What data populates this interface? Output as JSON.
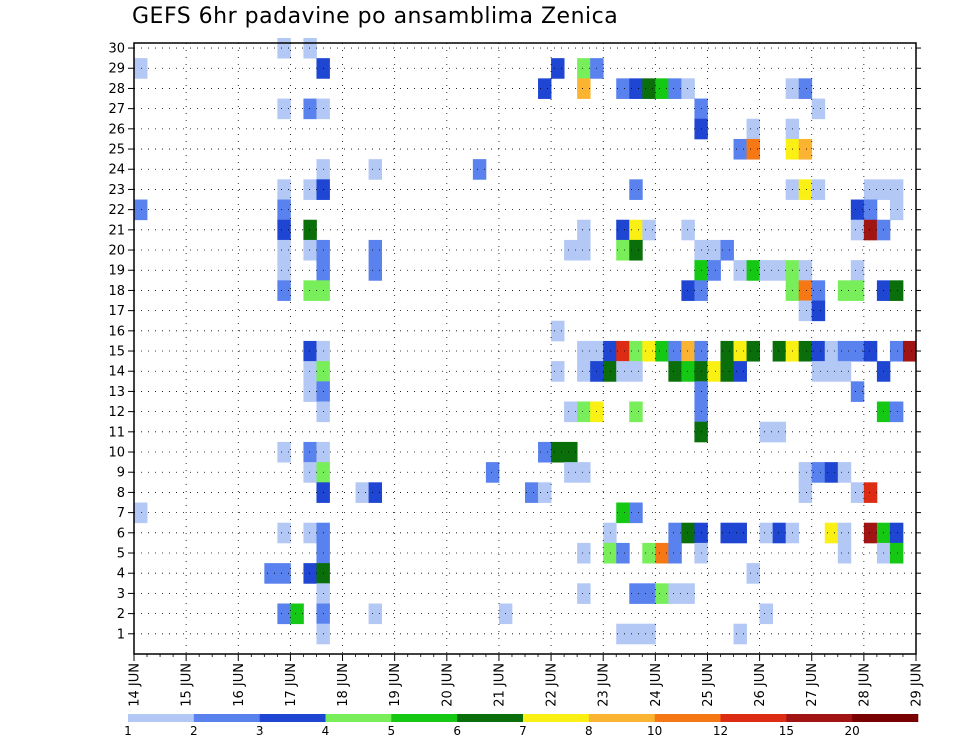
{
  "chart_data": {
    "type": "heatmap",
    "title": "GEFS 6hr padavine po ansamblima Zenica",
    "xlabel": "",
    "ylabel": "",
    "x_tick_labels": [
      "14 JUN",
      "15 JUN",
      "16 JUN",
      "17 JUN",
      "18 JUN",
      "19 JUN",
      "20 JUN",
      "21 JUN",
      "22 JUN",
      "23 JUN",
      "24 JUN",
      "25 JUN",
      "26 JUN",
      "27 JUN",
      "28 JUN",
      "29 JUN"
    ],
    "y_tick_labels": [
      "1",
      "2",
      "3",
      "4",
      "5",
      "6",
      "7",
      "8",
      "9",
      "10",
      "11",
      "12",
      "13",
      "14",
      "15",
      "16",
      "17",
      "18",
      "19",
      "20",
      "21",
      "22",
      "23",
      "24",
      "25",
      "26",
      "27",
      "28",
      "29",
      "30"
    ],
    "x_range_days": [
      14,
      29
    ],
    "y_range": [
      0,
      30
    ],
    "grid": true,
    "colorbar": {
      "labels": [
        "1",
        "2",
        "3",
        "4",
        "5",
        "6",
        "7",
        "8",
        "10",
        "12",
        "15",
        "20"
      ],
      "colors": [
        "#b4c8f5",
        "#5a82ee",
        "#1e46d2",
        "#78ee5a",
        "#14c814",
        "#0a6e0a",
        "#faf014",
        "#fab432",
        "#f57814",
        "#dc2d14",
        "#a01414",
        "#780000"
      ]
    },
    "cells_note": "each cell: [x start day (6-hour steps), ensemble member, colour class index 0-11]",
    "cells": [
      [
        16.75,
        30,
        0
      ],
      [
        17.25,
        30,
        0
      ],
      [
        14.0,
        29,
        0
      ],
      [
        17.5,
        29,
        2
      ],
      [
        22.0,
        29,
        2
      ],
      [
        22.5,
        29,
        3
      ],
      [
        22.75,
        29,
        1
      ],
      [
        21.75,
        28,
        2
      ],
      [
        22.5,
        28,
        7
      ],
      [
        23.25,
        28,
        1
      ],
      [
        23.5,
        28,
        2
      ],
      [
        23.75,
        28,
        5
      ],
      [
        24.0,
        28,
        4
      ],
      [
        24.25,
        28,
        1
      ],
      [
        24.5,
        28,
        0
      ],
      [
        26.5,
        28,
        0
      ],
      [
        26.75,
        28,
        1
      ],
      [
        16.75,
        27,
        0
      ],
      [
        17.25,
        27,
        1
      ],
      [
        17.5,
        27,
        0
      ],
      [
        24.75,
        27,
        1
      ],
      [
        27.0,
        27,
        0
      ],
      [
        24.75,
        26,
        2
      ],
      [
        25.75,
        26,
        0
      ],
      [
        26.5,
        26,
        0
      ],
      [
        25.5,
        25,
        1
      ],
      [
        25.75,
        25,
        8
      ],
      [
        26.5,
        25,
        6
      ],
      [
        26.75,
        25,
        7
      ],
      [
        18.5,
        24,
        0
      ],
      [
        20.5,
        24,
        1
      ],
      [
        17.5,
        24,
        0
      ],
      [
        16.75,
        23,
        0
      ],
      [
        17.25,
        23,
        0
      ],
      [
        17.5,
        23,
        2
      ],
      [
        23.5,
        23,
        1
      ],
      [
        26.5,
        23,
        0
      ],
      [
        26.75,
        23,
        6
      ],
      [
        27.0,
        23,
        0
      ],
      [
        28.0,
        23,
        0
      ],
      [
        28.25,
        23,
        0
      ],
      [
        28.5,
        23,
        0
      ],
      [
        14.0,
        22,
        1
      ],
      [
        16.75,
        22,
        1
      ],
      [
        27.75,
        22,
        2
      ],
      [
        28.0,
        22,
        1
      ],
      [
        28.5,
        22,
        0
      ],
      [
        16.75,
        21,
        2
      ],
      [
        17.25,
        21,
        5
      ],
      [
        22.5,
        21,
        0
      ],
      [
        23.25,
        21,
        2
      ],
      [
        23.5,
        21,
        6
      ],
      [
        23.75,
        21,
        0
      ],
      [
        24.5,
        21,
        0
      ],
      [
        27.75,
        21,
        0
      ],
      [
        28.0,
        21,
        10
      ],
      [
        28.25,
        21,
        1
      ],
      [
        16.75,
        20,
        0
      ],
      [
        17.25,
        20,
        0
      ],
      [
        17.5,
        20,
        1
      ],
      [
        18.5,
        20,
        1
      ],
      [
        22.25,
        20,
        0
      ],
      [
        22.5,
        20,
        0
      ],
      [
        23.25,
        20,
        3
      ],
      [
        23.5,
        20,
        5
      ],
      [
        24.75,
        20,
        0
      ],
      [
        25.0,
        20,
        0
      ],
      [
        25.25,
        20,
        1
      ],
      [
        16.75,
        19,
        0
      ],
      [
        17.5,
        19,
        1
      ],
      [
        18.5,
        19,
        1
      ],
      [
        24.75,
        19,
        4
      ],
      [
        25.0,
        19,
        1
      ],
      [
        25.5,
        19,
        0
      ],
      [
        25.75,
        19,
        4
      ],
      [
        26.0,
        19,
        0
      ],
      [
        26.25,
        19,
        0
      ],
      [
        26.5,
        19,
        3
      ],
      [
        26.75,
        19,
        0
      ],
      [
        27.75,
        19,
        0
      ],
      [
        16.75,
        18,
        1
      ],
      [
        17.25,
        18,
        3
      ],
      [
        17.5,
        18,
        3
      ],
      [
        24.5,
        18,
        2
      ],
      [
        24.75,
        18,
        1
      ],
      [
        26.5,
        18,
        3
      ],
      [
        26.75,
        18,
        8
      ],
      [
        27.0,
        18,
        1
      ],
      [
        27.5,
        18,
        3
      ],
      [
        27.75,
        18,
        3
      ],
      [
        28.25,
        18,
        2
      ],
      [
        28.5,
        18,
        5
      ],
      [
        26.75,
        17,
        0
      ],
      [
        27.0,
        17,
        2
      ],
      [
        22.0,
        16,
        0
      ],
      [
        17.25,
        15,
        2
      ],
      [
        17.5,
        15,
        0
      ],
      [
        22.5,
        15,
        0
      ],
      [
        22.75,
        15,
        0
      ],
      [
        23.0,
        15,
        2
      ],
      [
        23.25,
        15,
        9
      ],
      [
        23.5,
        15,
        3
      ],
      [
        23.75,
        15,
        6
      ],
      [
        24.0,
        15,
        4
      ],
      [
        24.25,
        15,
        1
      ],
      [
        24.5,
        15,
        7
      ],
      [
        24.75,
        15,
        1
      ],
      [
        25.25,
        15,
        5
      ],
      [
        25.5,
        15,
        6
      ],
      [
        25.75,
        15,
        5
      ],
      [
        26.25,
        15,
        5
      ],
      [
        26.5,
        15,
        6
      ],
      [
        26.75,
        15,
        5
      ],
      [
        27.0,
        15,
        2
      ],
      [
        27.25,
        15,
        0
      ],
      [
        27.5,
        15,
        1
      ],
      [
        27.75,
        15,
        1
      ],
      [
        28.0,
        15,
        2
      ],
      [
        28.5,
        15,
        1
      ],
      [
        28.75,
        15,
        10
      ],
      [
        17.25,
        14,
        0
      ],
      [
        17.5,
        14,
        3
      ],
      [
        22.0,
        14,
        0
      ],
      [
        22.5,
        14,
        0
      ],
      [
        22.75,
        14,
        2
      ],
      [
        23.0,
        14,
        5
      ],
      [
        23.25,
        14,
        0
      ],
      [
        23.5,
        14,
        0
      ],
      [
        24.25,
        14,
        5
      ],
      [
        24.5,
        14,
        4
      ],
      [
        24.75,
        14,
        5
      ],
      [
        25.0,
        14,
        6
      ],
      [
        25.25,
        14,
        5
      ],
      [
        25.5,
        14,
        2
      ],
      [
        27.0,
        14,
        0
      ],
      [
        27.25,
        14,
        0
      ],
      [
        27.5,
        14,
        0
      ],
      [
        28.25,
        14,
        2
      ],
      [
        17.25,
        13,
        0
      ],
      [
        17.5,
        13,
        1
      ],
      [
        24.75,
        13,
        1
      ],
      [
        27.75,
        13,
        1
      ],
      [
        17.5,
        12,
        0
      ],
      [
        22.25,
        12,
        0
      ],
      [
        22.5,
        12,
        3
      ],
      [
        22.75,
        12,
        6
      ],
      [
        23.5,
        12,
        3
      ],
      [
        24.75,
        12,
        1
      ],
      [
        28.25,
        12,
        4
      ],
      [
        28.5,
        12,
        1
      ],
      [
        24.75,
        11,
        5
      ],
      [
        26.0,
        11,
        0
      ],
      [
        26.25,
        11,
        0
      ],
      [
        16.75,
        10,
        0
      ],
      [
        17.25,
        10,
        1
      ],
      [
        17.5,
        10,
        0
      ],
      [
        21.75,
        10,
        1
      ],
      [
        22.0,
        10,
        5
      ],
      [
        22.25,
        10,
        5
      ],
      [
        17.25,
        9,
        0
      ],
      [
        17.5,
        9,
        3
      ],
      [
        20.75,
        9,
        1
      ],
      [
        22.25,
        9,
        0
      ],
      [
        22.5,
        9,
        0
      ],
      [
        26.75,
        9,
        0
      ],
      [
        27.0,
        9,
        1
      ],
      [
        27.25,
        9,
        2
      ],
      [
        27.5,
        9,
        0
      ],
      [
        17.5,
        8,
        2
      ],
      [
        18.25,
        8,
        0
      ],
      [
        18.5,
        8,
        2
      ],
      [
        21.5,
        8,
        1
      ],
      [
        21.75,
        8,
        0
      ],
      [
        26.75,
        8,
        0
      ],
      [
        27.75,
        8,
        0
      ],
      [
        28.0,
        8,
        9
      ],
      [
        14.0,
        7,
        0
      ],
      [
        23.25,
        7,
        4
      ],
      [
        23.5,
        7,
        1
      ],
      [
        16.75,
        6,
        0
      ],
      [
        17.25,
        6,
        0
      ],
      [
        17.5,
        6,
        1
      ],
      [
        23.0,
        6,
        0
      ],
      [
        24.25,
        6,
        1
      ],
      [
        24.5,
        6,
        5
      ],
      [
        24.75,
        6,
        2
      ],
      [
        25.25,
        6,
        2
      ],
      [
        25.5,
        6,
        2
      ],
      [
        26.0,
        6,
        0
      ],
      [
        26.25,
        6,
        2
      ],
      [
        26.5,
        6,
        0
      ],
      [
        27.25,
        6,
        6
      ],
      [
        27.5,
        6,
        0
      ],
      [
        28.0,
        6,
        10
      ],
      [
        28.25,
        6,
        4
      ],
      [
        28.5,
        6,
        2
      ],
      [
        17.5,
        5,
        1
      ],
      [
        22.5,
        5,
        0
      ],
      [
        23.0,
        5,
        3
      ],
      [
        23.25,
        5,
        1
      ],
      [
        23.75,
        5,
        3
      ],
      [
        24.0,
        5,
        8
      ],
      [
        24.25,
        5,
        1
      ],
      [
        24.75,
        5,
        0
      ],
      [
        27.5,
        5,
        0
      ],
      [
        28.25,
        5,
        0
      ],
      [
        28.5,
        5,
        4
      ],
      [
        16.5,
        4,
        1
      ],
      [
        16.75,
        4,
        1
      ],
      [
        17.25,
        4,
        2
      ],
      [
        17.5,
        4,
        5
      ],
      [
        25.75,
        4,
        0
      ],
      [
        17.5,
        3,
        0
      ],
      [
        22.5,
        3,
        0
      ],
      [
        23.5,
        3,
        1
      ],
      [
        23.75,
        3,
        1
      ],
      [
        24.0,
        3,
        3
      ],
      [
        24.25,
        3,
        0
      ],
      [
        24.5,
        3,
        0
      ],
      [
        16.75,
        2,
        1
      ],
      [
        17.0,
        2,
        4
      ],
      [
        17.5,
        2,
        1
      ],
      [
        18.5,
        2,
        0
      ],
      [
        21.0,
        2,
        0
      ],
      [
        26.0,
        2,
        0
      ],
      [
        17.5,
        1,
        0
      ],
      [
        23.25,
        1,
        0
      ],
      [
        23.5,
        1,
        0
      ],
      [
        23.75,
        1,
        0
      ],
      [
        25.5,
        1,
        0
      ]
    ]
  }
}
